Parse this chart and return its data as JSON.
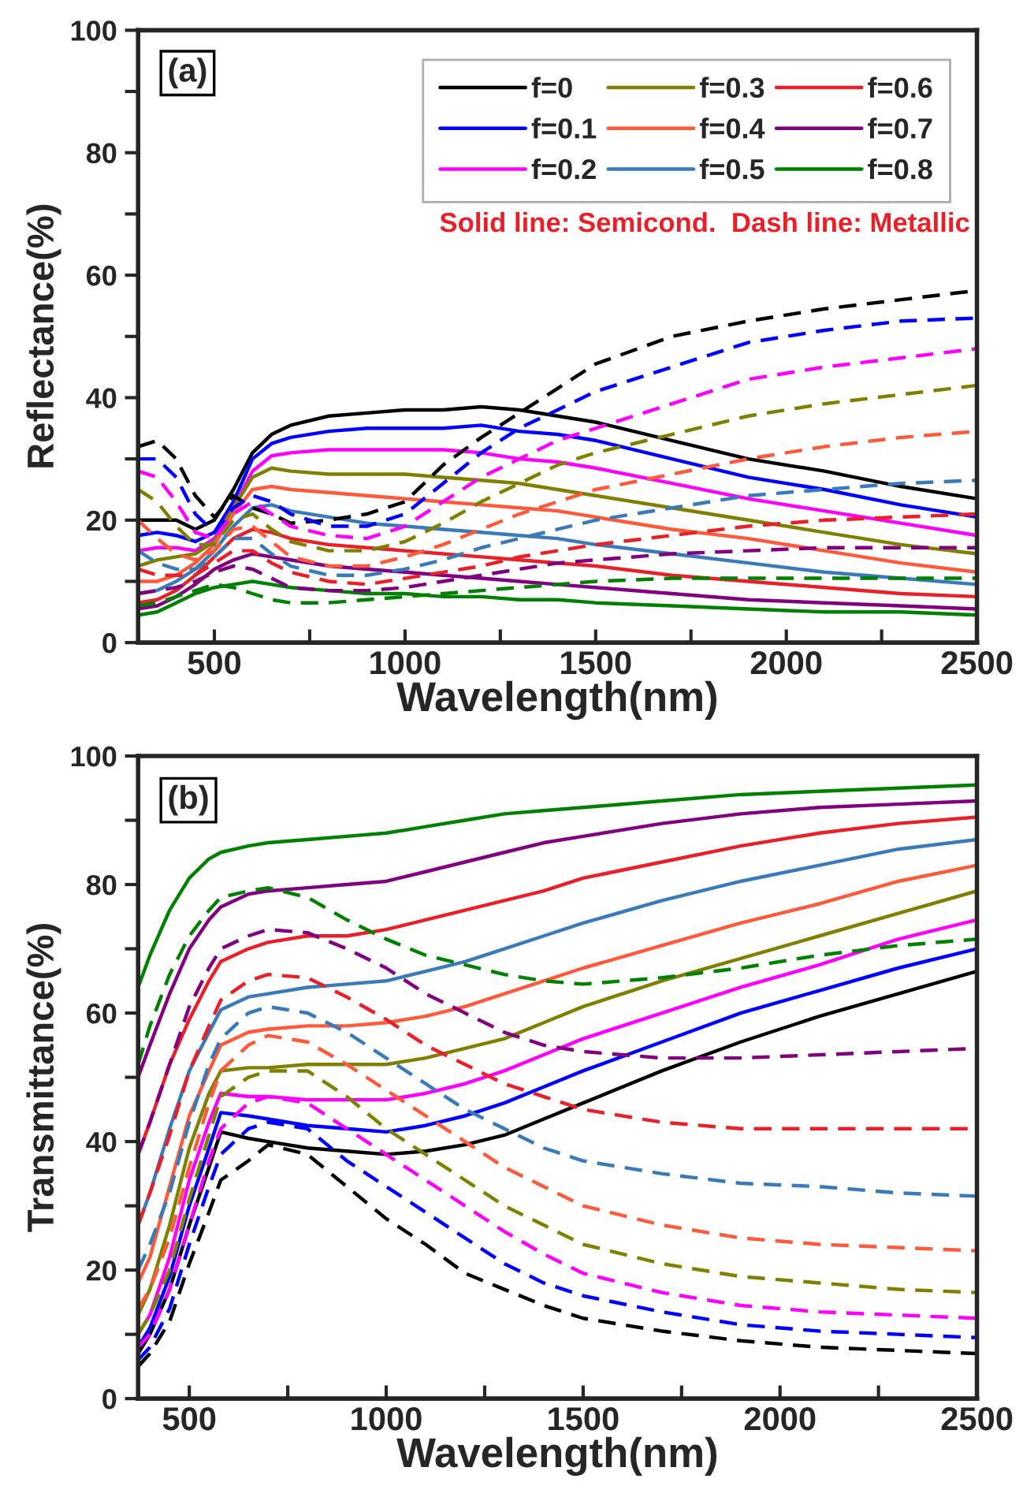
{
  "chart_data": [
    {
      "type": "line",
      "xlabel": "Wavelength(nm)",
      "ylabel": "Reflectance(%)",
      "xlim": [
        300,
        2500
      ],
      "ylim": [
        0,
        100
      ],
      "xticks": [
        500,
        {
          "value": 750,
          "label": null
        },
        1000,
        {
          "value": 1250,
          "label": null
        },
        1500,
        {
          "value": 1750,
          "label": null
        },
        2000,
        {
          "value": 2250,
          "label": null
        },
        2500
      ],
      "yticks": [
        0,
        {
          "value": 10,
          "label": null
        },
        20,
        {
          "value": 30,
          "label": null
        },
        40,
        {
          "value": 50,
          "label": null
        },
        60,
        {
          "value": 70,
          "label": null
        },
        80,
        {
          "value": 90,
          "label": null
        },
        100
      ],
      "grid": false,
      "legend": "top right",
      "marker": "none",
      "annotations": [
        "(a)",
        "Solid line: Semicond.  Dash line: Metallic"
      ],
      "x": [
        300,
        350,
        400,
        450,
        500,
        550,
        600,
        650,
        700,
        800,
        900,
        1000,
        1100,
        1200,
        1300,
        1400,
        1500,
        1700,
        1900,
        2100,
        2300,
        2500
      ],
      "series": [
        {
          "name": "f=0",
          "color": "#000000",
          "line_style": "solid",
          "values": [
            20,
            20,
            20,
            18.5,
            20,
            25,
            31,
            34,
            35.5,
            37,
            37.5,
            38,
            38,
            38.5,
            38,
            37,
            36,
            33,
            30,
            28,
            25.5,
            23.5
          ]
        },
        {
          "name": "f=0.1",
          "color": "#0000ff",
          "line_style": "solid",
          "values": [
            17.5,
            18,
            17.5,
            16.5,
            18,
            23,
            30,
            32.5,
            33.5,
            34.5,
            35,
            35,
            35,
            35.5,
            34.5,
            34,
            33,
            30,
            27,
            25,
            22.5,
            20.5
          ]
        },
        {
          "name": "f=0.2",
          "color": "#ff00ff",
          "line_style": "solid",
          "values": [
            15,
            15.5,
            15.5,
            15,
            17,
            22,
            28,
            30.5,
            31,
            31.5,
            31.5,
            31.5,
            31.5,
            31,
            30,
            29.5,
            28.5,
            26,
            23.5,
            21.5,
            19.5,
            17.5
          ]
        },
        {
          "name": "f=0.3",
          "color": "#808000",
          "line_style": "solid",
          "values": [
            12.5,
            13.5,
            14,
            14.5,
            16.5,
            22,
            27,
            28.5,
            28,
            27.5,
            27.5,
            27.5,
            27,
            26.5,
            26,
            25,
            24,
            22,
            20,
            18,
            16,
            14.5
          ]
        },
        {
          "name": "f=0.4",
          "color": "#ff5a3c",
          "line_style": "solid",
          "values": [
            10,
            10,
            11,
            13,
            16,
            21,
            25,
            25.5,
            25,
            24.5,
            24,
            23.5,
            23,
            22.5,
            22,
            21.5,
            20.5,
            18.5,
            17,
            15,
            13,
            11.5
          ]
        },
        {
          "name": "f=0.5",
          "color": "#3a7ab8",
          "line_style": "solid",
          "values": [
            8,
            8.5,
            10,
            12,
            15,
            19,
            22,
            22.5,
            21.5,
            20.5,
            19.5,
            19,
            18.5,
            18,
            17.5,
            17,
            16,
            14.5,
            13,
            11.5,
            10.5,
            9.5
          ]
        },
        {
          "name": "f=0.6",
          "color": "#e8202a",
          "line_style": "solid",
          "values": [
            6.5,
            7,
            8.5,
            11,
            14,
            17,
            18.5,
            18,
            17,
            16,
            15.5,
            15,
            14.5,
            14,
            13.5,
            13,
            12.5,
            11,
            10,
            9,
            8,
            7.5
          ]
        },
        {
          "name": "f=0.7",
          "color": "#800080",
          "line_style": "solid",
          "values": [
            5.5,
            6,
            7.5,
            9.5,
            12,
            13.5,
            14.5,
            14,
            13.5,
            12.5,
            12,
            11.5,
            11,
            10.5,
            10,
            9.5,
            9,
            8,
            7,
            6.5,
            6,
            5.5
          ]
        },
        {
          "name": "f=0.8",
          "color": "#008000",
          "line_style": "solid",
          "values": [
            4.5,
            5,
            6.5,
            8,
            9,
            9.5,
            10,
            9.5,
            9,
            8.5,
            8,
            8,
            7.5,
            7.5,
            7,
            7,
            6.5,
            6,
            5.5,
            5,
            5,
            4.5
          ]
        },
        {
          "color": "#000000",
          "line_style": "dashed",
          "values": [
            32,
            33,
            30,
            24,
            20.5,
            24,
            22,
            21,
            19.5,
            20,
            21,
            23,
            29,
            33.5,
            37.5,
            41.5,
            45.5,
            50,
            52.5,
            54.5,
            56,
            57.5
          ]
        },
        {
          "color": "#0000ff",
          "line_style": "dashed",
          "values": [
            30,
            30,
            27,
            21,
            18,
            22,
            24,
            23,
            21,
            19,
            19,
            21,
            26,
            31,
            35,
            38,
            41,
            45,
            49,
            51,
            52.5,
            53
          ]
        },
        {
          "color": "#ff00ff",
          "line_style": "dashed",
          "values": [
            28,
            27,
            23,
            18,
            17,
            21,
            23,
            21,
            19,
            17.5,
            17,
            19,
            23,
            27,
            30,
            33,
            35,
            39,
            43,
            45,
            46.5,
            48
          ]
        },
        {
          "color": "#808000",
          "line_style": "dashed",
          "values": [
            25,
            23,
            19,
            16,
            16,
            20,
            21,
            18.5,
            16.5,
            15,
            15,
            16.5,
            19.5,
            23,
            26,
            29,
            31,
            34,
            37,
            39,
            40.5,
            42
          ]
        },
        {
          "color": "#ff5a3c",
          "line_style": "dashed",
          "values": [
            20,
            17,
            14.5,
            13.5,
            15,
            18.5,
            19,
            16.5,
            14,
            12.5,
            12.5,
            14,
            16,
            18.5,
            21,
            23,
            25,
            27.5,
            30,
            32,
            33.5,
            34.5
          ]
        },
        {
          "color": "#3a7ab8",
          "line_style": "dashed",
          "values": [
            15,
            13,
            12,
            12,
            14,
            17,
            17,
            14.5,
            12.5,
            11,
            11,
            12,
            13.5,
            15.5,
            17,
            18.5,
            20,
            22,
            24,
            25,
            26,
            26.5
          ]
        },
        {
          "color": "#e8202a",
          "line_style": "dashed",
          "values": [
            12,
            11,
            11,
            11,
            13,
            15,
            15,
            13,
            11.5,
            10,
            9.5,
            10.5,
            11.5,
            12.5,
            14,
            15,
            16,
            17.5,
            19,
            20,
            20.5,
            21
          ]
        },
        {
          "color": "#800080",
          "line_style": "dashed",
          "values": [
            8,
            8.5,
            9,
            10,
            11.5,
            12.5,
            12,
            10.5,
            9,
            8.5,
            8.5,
            9,
            10,
            11,
            12,
            13,
            13.5,
            14.5,
            15,
            15.5,
            15.5,
            15.5
          ]
        },
        {
          "color": "#008000",
          "line_style": "dashed",
          "values": [
            6,
            6.5,
            7.5,
            8.5,
            9.5,
            9,
            8,
            7,
            6.5,
            6.5,
            7,
            7.5,
            8,
            8.5,
            9,
            9.5,
            10,
            10.5,
            10.5,
            10.5,
            10.5,
            10.5
          ]
        }
      ]
    },
    {
      "type": "line",
      "xlabel": "Wavelength(nm)",
      "ylabel": "Transmittance(%)",
      "xlim": [
        370,
        2500
      ],
      "ylim": [
        0,
        100
      ],
      "xticks": [
        500,
        {
          "value": 750,
          "label": null
        },
        1000,
        {
          "value": 1250,
          "label": null
        },
        1500,
        {
          "value": 1750,
          "label": null
        },
        2000,
        {
          "value": 2250,
          "label": null
        },
        2500
      ],
      "yticks": [
        0,
        {
          "value": 10,
          "label": null
        },
        20,
        {
          "value": 30,
          "label": null
        },
        40,
        {
          "value": 50,
          "label": null
        },
        60,
        {
          "value": 70,
          "label": null
        },
        80,
        {
          "value": 90,
          "label": null
        },
        100
      ],
      "grid": false,
      "marker": "none",
      "annotations": [
        "(b)"
      ],
      "x": [
        370,
        400,
        450,
        500,
        550,
        580,
        650,
        700,
        800,
        900,
        1000,
        1100,
        1200,
        1300,
        1400,
        1500,
        1700,
        1900,
        2100,
        2300,
        2500
      ],
      "series": [
        {
          "color": "#000000",
          "line_style": "solid",
          "values": [
            7,
            10,
            17,
            27,
            36,
            41.5,
            40.5,
            40,
            39,
            38.5,
            38,
            38.5,
            39.5,
            41,
            43.5,
            46,
            51,
            55.5,
            59.5,
            63,
            66.5
          ]
        },
        {
          "color": "#0000ff",
          "line_style": "solid",
          "values": [
            8,
            11,
            19,
            30,
            39,
            44.5,
            44,
            43.5,
            42.5,
            42,
            41.5,
            42.5,
            44,
            46,
            48.5,
            51,
            55.5,
            60,
            63.5,
            67,
            70
          ]
        },
        {
          "color": "#ff00ff",
          "line_style": "solid",
          "values": [
            10,
            13,
            22,
            34,
            43,
            47.5,
            47,
            47,
            46.5,
            46.5,
            46.5,
            47.5,
            49,
            51,
            53.5,
            56,
            60,
            64,
            67.5,
            71.5,
            74.5
          ]
        },
        {
          "color": "#808000",
          "line_style": "solid",
          "values": [
            13,
            17,
            27,
            39,
            47.5,
            51,
            51.5,
            51.5,
            52,
            52,
            52,
            53,
            54.5,
            56,
            58.5,
            61,
            65,
            68.5,
            72,
            75.5,
            79
          ]
        },
        {
          "color": "#ff5a3c",
          "line_style": "solid",
          "values": [
            18,
            22,
            33,
            44,
            51,
            55,
            57,
            57.5,
            58,
            58,
            58.5,
            59.5,
            61,
            63,
            65,
            67,
            70.5,
            74,
            77,
            80.5,
            83
          ]
        },
        {
          "color": "#3a7ab8",
          "line_style": "solid",
          "values": [
            27,
            32,
            42,
            51,
            57,
            60.5,
            62.5,
            63,
            64,
            64.5,
            65,
            66.5,
            68,
            70,
            72,
            74,
            77.5,
            80.5,
            83,
            85.5,
            87
          ]
        },
        {
          "color": "#e8202a",
          "line_style": "solid",
          "values": [
            38,
            43,
            52,
            59,
            65,
            68,
            70,
            71,
            72,
            72,
            73,
            74.5,
            76,
            77.5,
            79,
            81,
            83.5,
            86,
            88,
            89.5,
            90.5
          ]
        },
        {
          "color": "#800080",
          "line_style": "solid",
          "values": [
            50,
            55,
            63,
            70,
            74.5,
            76.5,
            78.5,
            79,
            79.5,
            80,
            80.5,
            82,
            83.5,
            85,
            86.5,
            87.5,
            89.5,
            91,
            92,
            92.5,
            93
          ]
        },
        {
          "color": "#008000",
          "line_style": "solid",
          "values": [
            64,
            69,
            76,
            81,
            84,
            85,
            86,
            86.5,
            87,
            87.5,
            88,
            89,
            90,
            91,
            91.5,
            92,
            93,
            94,
            94.5,
            95,
            95.5
          ]
        },
        {
          "color": "#000000",
          "line_style": "dashed",
          "values": [
            5,
            7,
            12,
            21,
            29,
            34,
            37,
            39.5,
            38,
            33,
            28,
            24,
            19.5,
            17,
            14.5,
            12.5,
            10.5,
            9,
            8,
            7.5,
            7
          ]
        },
        {
          "color": "#0000ff",
          "line_style": "dashed",
          "values": [
            6,
            8,
            14,
            24,
            33,
            38,
            42,
            43,
            42,
            37,
            33,
            29,
            25,
            21,
            18,
            16,
            13.5,
            11.5,
            10.5,
            10,
            9.5
          ]
        },
        {
          "color": "#ff00ff",
          "line_style": "dashed",
          "values": [
            8,
            10,
            17,
            27,
            37,
            42,
            46,
            47,
            46,
            42,
            38,
            34,
            30,
            26,
            22.5,
            19.5,
            16.5,
            14.5,
            13.5,
            13,
            12.5
          ]
        },
        {
          "color": "#808000",
          "line_style": "dashed",
          "values": [
            10,
            13,
            20,
            31,
            41,
            47,
            50,
            51,
            51,
            47,
            42,
            38,
            34,
            30,
            27,
            24,
            21,
            19,
            18,
            17,
            16.5
          ]
        },
        {
          "color": "#ff5a3c",
          "line_style": "dashed",
          "values": [
            14,
            17,
            25,
            36,
            46,
            51,
            55,
            56.5,
            55.5,
            52,
            48,
            44,
            40,
            36,
            33,
            30,
            27,
            25,
            24,
            23.5,
            23
          ]
        },
        {
          "color": "#3a7ab8",
          "line_style": "dashed",
          "values": [
            20,
            24,
            32,
            43,
            52,
            56,
            60,
            61,
            60,
            57,
            53,
            49,
            45,
            42,
            39,
            37,
            35,
            33.5,
            33,
            32,
            31.5
          ]
        },
        {
          "color": "#e8202a",
          "line_style": "dashed",
          "values": [
            27,
            32,
            41,
            51,
            58,
            62,
            65,
            66,
            65.5,
            62.5,
            59,
            55,
            52,
            49,
            47,
            45,
            43,
            42,
            42,
            42,
            42
          ]
        },
        {
          "color": "#800080",
          "line_style": "dashed",
          "values": [
            38,
            43,
            52,
            61,
            67,
            70,
            72,
            73,
            72.5,
            70,
            67,
            63,
            60,
            57,
            55,
            54,
            53,
            53,
            53.5,
            54,
            54.5
          ]
        },
        {
          "color": "#008000",
          "line_style": "dashed",
          "values": [
            52,
            58,
            66,
            72,
            76,
            78,
            79,
            79.5,
            78,
            74.5,
            71.5,
            69,
            67.5,
            66,
            65,
            64.5,
            65.5,
            67,
            69,
            70.5,
            71.5
          ]
        }
      ]
    }
  ]
}
